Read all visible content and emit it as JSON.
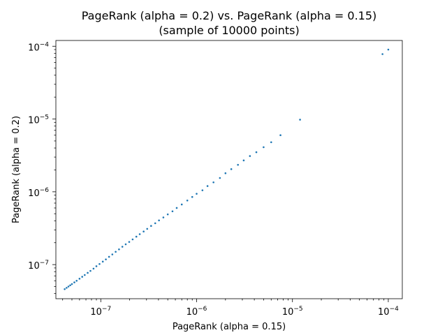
{
  "chart_data": {
    "type": "scatter",
    "title": "PageRank (alpha = 0.2) vs. PageRank (alpha = 0.15)",
    "subtitle": "(sample of 10000 points)",
    "xlabel": "PageRank (alpha = 0.15)",
    "ylabel": "PageRank (alpha = 0.2)",
    "xscale": "log",
    "yscale": "log",
    "xlim": [
      3.4e-08,
      0.00014
    ],
    "ylim": [
      3.4e-08,
      0.00012
    ],
    "grid": false,
    "color": "#1f77b4",
    "x_ticks": [
      {
        "value": 1e-07,
        "base": "10",
        "exp": "−7"
      },
      {
        "value": 1e-06,
        "base": "10",
        "exp": "−6"
      },
      {
        "value": 1e-05,
        "base": "10",
        "exp": "−5"
      },
      {
        "value": 0.0001,
        "base": "10",
        "exp": "−4"
      }
    ],
    "y_ticks": [
      {
        "value": 1e-07,
        "base": "10",
        "exp": "−7"
      },
      {
        "value": 1e-06,
        "base": "10",
        "exp": "−6"
      },
      {
        "value": 1e-05,
        "base": "10",
        "exp": "−5"
      },
      {
        "value": 0.0001,
        "base": "10",
        "exp": "−4"
      }
    ],
    "series": [
      {
        "values": [
          {
            "x": 4.2e-08,
            "y": 4.6e-08
          },
          {
            "x": 4.4e-08,
            "y": 4.8e-08
          },
          {
            "x": 4.6e-08,
            "y": 5e-08
          },
          {
            "x": 4.8e-08,
            "y": 5.2e-08
          },
          {
            "x": 5e-08,
            "y": 5.4e-08
          },
          {
            "x": 5.3e-08,
            "y": 5.7e-08
          },
          {
            "x": 5.6e-08,
            "y": 6e-08
          },
          {
            "x": 6e-08,
            "y": 6.4e-08
          },
          {
            "x": 6.4e-08,
            "y": 6.8e-08
          },
          {
            "x": 6.8e-08,
            "y": 7.2e-08
          },
          {
            "x": 7.3e-08,
            "y": 7.7e-08
          },
          {
            "x": 7.8e-08,
            "y": 8.2e-08
          },
          {
            "x": 8.4e-08,
            "y": 8.8e-08
          },
          {
            "x": 9e-08,
            "y": 9.5e-08
          },
          {
            "x": 9.7e-08,
            "y": 1.02e-07
          },
          {
            "x": 1.05e-07,
            "y": 1.1e-07
          },
          {
            "x": 1.13e-07,
            "y": 1.18e-07
          },
          {
            "x": 1.22e-07,
            "y": 1.28e-07
          },
          {
            "x": 1.32e-07,
            "y": 1.38e-07
          },
          {
            "x": 1.43e-07,
            "y": 1.5e-07
          },
          {
            "x": 1.55e-07,
            "y": 1.62e-07
          },
          {
            "x": 1.68e-07,
            "y": 1.76e-07
          },
          {
            "x": 1.82e-07,
            "y": 1.9e-07
          },
          {
            "x": 1.98e-07,
            "y": 2.05e-07
          },
          {
            "x": 2.15e-07,
            "y": 2.22e-07
          },
          {
            "x": 2.35e-07,
            "y": 2.42e-07
          },
          {
            "x": 2.55e-07,
            "y": 2.62e-07
          },
          {
            "x": 2.8e-07,
            "y": 2.85e-07
          },
          {
            "x": 3.05e-07,
            "y": 3.1e-07
          },
          {
            "x": 3.35e-07,
            "y": 3.4e-07
          },
          {
            "x": 3.7e-07,
            "y": 3.7e-07
          },
          {
            "x": 4.05e-07,
            "y": 4.05e-07
          },
          {
            "x": 4.5e-07,
            "y": 4.45e-07
          },
          {
            "x": 5e-07,
            "y": 4.9e-07
          },
          {
            "x": 5.6e-07,
            "y": 5.4e-07
          },
          {
            "x": 6.2e-07,
            "y": 6e-07
          },
          {
            "x": 7e-07,
            "y": 6.7e-07
          },
          {
            "x": 8e-07,
            "y": 7.6e-07
          },
          {
            "x": 9e-07,
            "y": 8.5e-07
          },
          {
            "x": 1e-06,
            "y": 9.4e-07
          },
          {
            "x": 1.15e-06,
            "y": 1.05e-06
          },
          {
            "x": 1.3e-06,
            "y": 1.2e-06
          },
          {
            "x": 1.5e-06,
            "y": 1.35e-06
          },
          {
            "x": 1.75e-06,
            "y": 1.55e-06
          },
          {
            "x": 2e-06,
            "y": 1.8e-06
          },
          {
            "x": 2.3e-06,
            "y": 2.05e-06
          },
          {
            "x": 2.7e-06,
            "y": 2.35e-06
          },
          {
            "x": 3.1e-06,
            "y": 2.7e-06
          },
          {
            "x": 3.6e-06,
            "y": 3.1e-06
          },
          {
            "x": 4.2e-06,
            "y": 3.5e-06
          },
          {
            "x": 5e-06,
            "y": 4.1e-06
          },
          {
            "x": 6e-06,
            "y": 4.8e-06
          },
          {
            "x": 7.5e-06,
            "y": 6e-06
          },
          {
            "x": 1.2e-05,
            "y": 9.8e-06
          },
          {
            "x": 8.7e-05,
            "y": 7.8e-05
          },
          {
            "x": 0.0001,
            "y": 9e-05
          }
        ]
      }
    ]
  }
}
